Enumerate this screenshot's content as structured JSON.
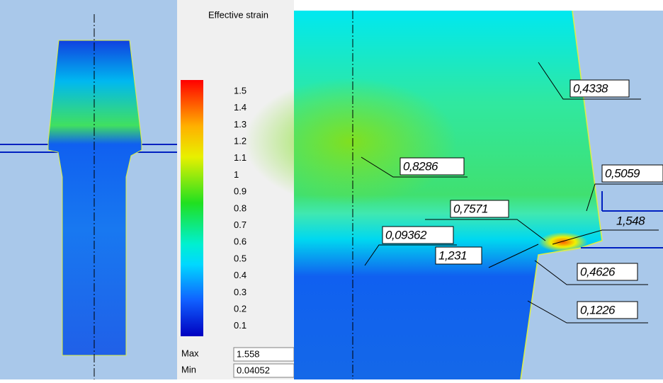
{
  "legend": {
    "title": "Effective strain",
    "ticks": [
      1.5,
      1.4,
      1.3,
      1.2,
      1.1,
      1,
      0.9,
      0.8,
      0.7,
      0.6,
      0.5,
      0.4,
      0.3,
      0.2,
      0.1
    ],
    "max_label": "Max",
    "max_value": "1.558",
    "min_label": "Min",
    "min_value": "0.04052"
  },
  "annotations": [
    "0,4338",
    "0,8286",
    "0,5059",
    "0,7571",
    "1,548",
    "0,09362",
    "1,231",
    "0,4626",
    "0,1226"
  ]
}
